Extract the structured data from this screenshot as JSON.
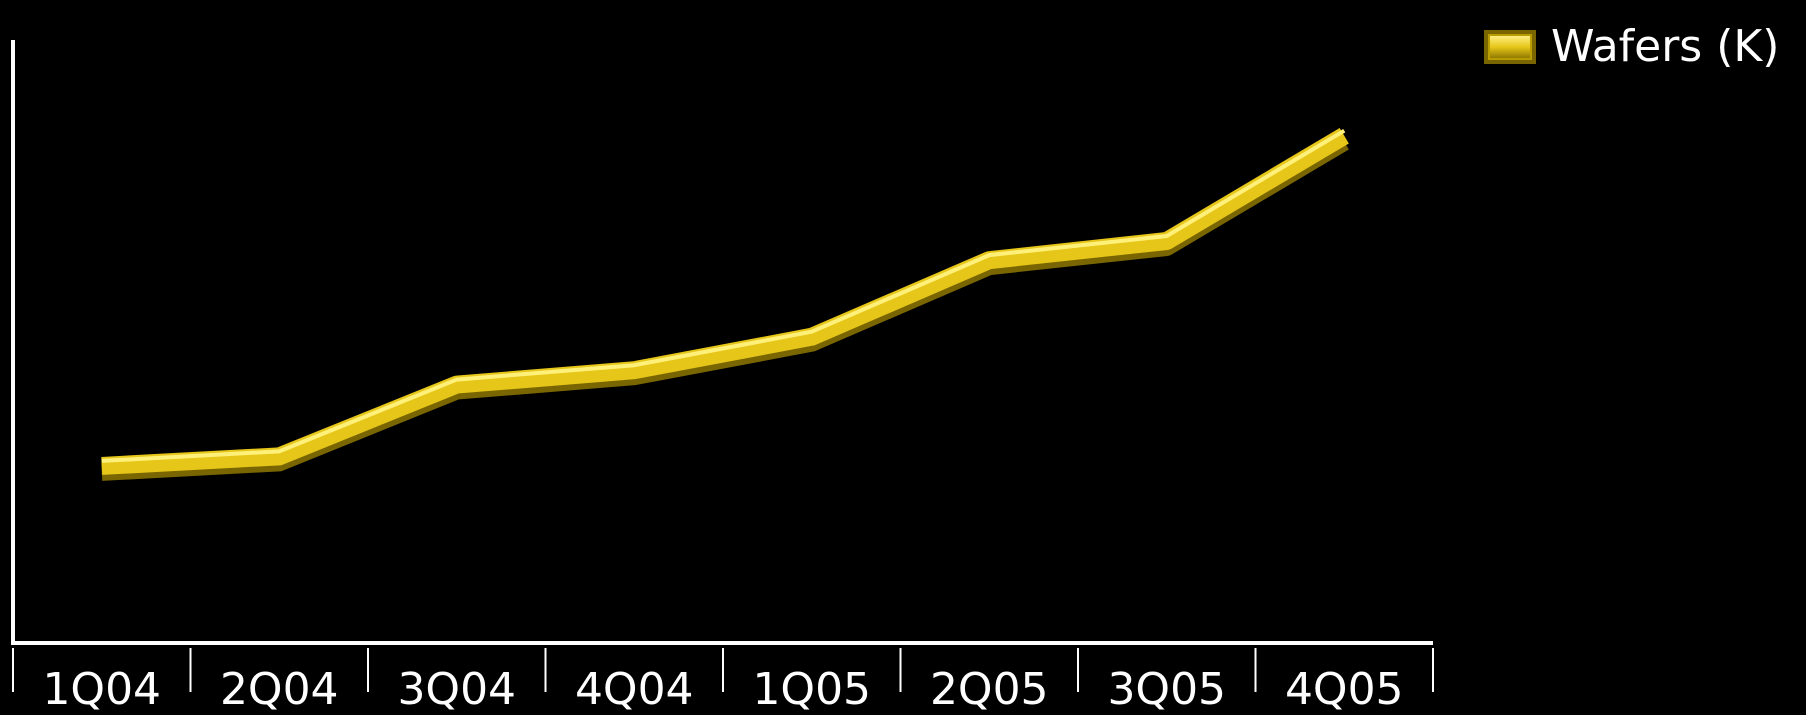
{
  "chart_data": {
    "type": "line",
    "title": "",
    "xlabel": "",
    "ylabel": "",
    "categories": [
      "1Q04",
      "2Q04",
      "3Q04",
      "4Q04",
      "1Q05",
      "2Q05",
      "3Q05",
      "4Q05"
    ],
    "series": [
      {
        "name": "Wafers (K)",
        "values": [
          18.5,
          19.5,
          27,
          28.5,
          32,
          40,
          42,
          53
        ],
        "color": "#e6c619"
      }
    ],
    "ylim": [
      0,
      63
    ],
    "grid": false,
    "legend_position": "top-right",
    "show_y_ticks": false
  }
}
